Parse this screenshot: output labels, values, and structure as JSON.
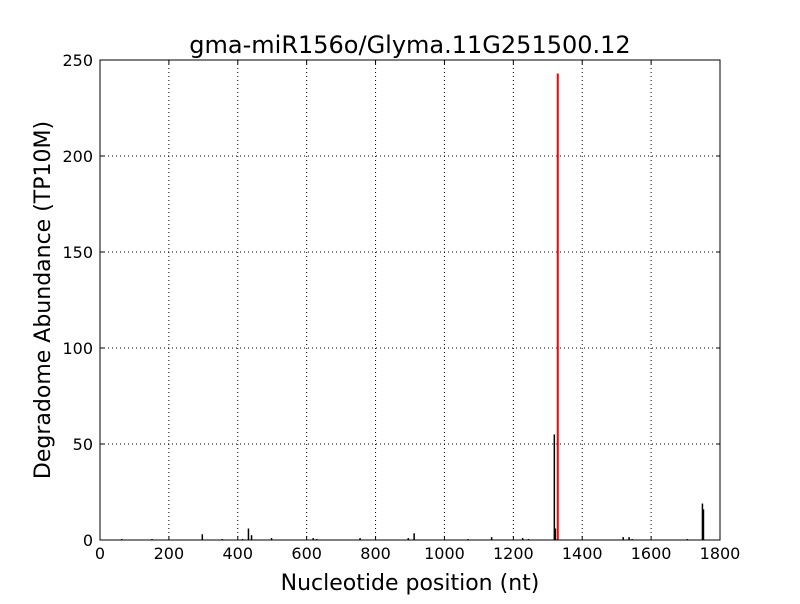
{
  "chart_data": {
    "type": "bar",
    "title": "gma-miR156o/Glyma.11G251500.12",
    "xlabel": "Nucleotide position (nt)",
    "ylabel": "Degradome Abundance (TP10M)",
    "xlim": [
      0,
      1800
    ],
    "ylim": [
      0,
      250
    ],
    "xticks": [
      0,
      200,
      400,
      600,
      800,
      1000,
      1200,
      1400,
      1600,
      1800
    ],
    "yticks": [
      0,
      50,
      100,
      150,
      200,
      250
    ],
    "grid": true,
    "colors": {
      "background_bars": "#000000",
      "target_bar": "#ff0000"
    },
    "series": [
      {
        "color": "#000000",
        "points": [
          {
            "x": 63,
            "y": 0.5
          },
          {
            "x": 151,
            "y": 0.5
          },
          {
            "x": 297,
            "y": 3
          },
          {
            "x": 355,
            "y": 0.5
          },
          {
            "x": 414,
            "y": 0.5
          },
          {
            "x": 431,
            "y": 6
          },
          {
            "x": 440,
            "y": 2.5
          },
          {
            "x": 498,
            "y": 1
          },
          {
            "x": 619,
            "y": 1
          },
          {
            "x": 629,
            "y": 0.5
          },
          {
            "x": 755,
            "y": 1
          },
          {
            "x": 895,
            "y": 1
          },
          {
            "x": 912,
            "y": 3.5
          },
          {
            "x": 1069,
            "y": 0.5
          },
          {
            "x": 1137,
            "y": 1.5
          },
          {
            "x": 1227,
            "y": 1
          },
          {
            "x": 1244,
            "y": 0.5
          },
          {
            "x": 1319,
            "y": 55
          },
          {
            "x": 1322,
            "y": 6
          },
          {
            "x": 1519,
            "y": 1.5
          },
          {
            "x": 1536,
            "y": 1.5
          },
          {
            "x": 1545,
            "y": 0.5
          },
          {
            "x": 1705,
            "y": 0.5
          },
          {
            "x": 1749,
            "y": 19
          },
          {
            "x": 1752,
            "y": 16
          }
        ]
      },
      {
        "color": "#ff0000",
        "points": [
          {
            "x": 1329,
            "y": 243
          }
        ]
      }
    ]
  }
}
